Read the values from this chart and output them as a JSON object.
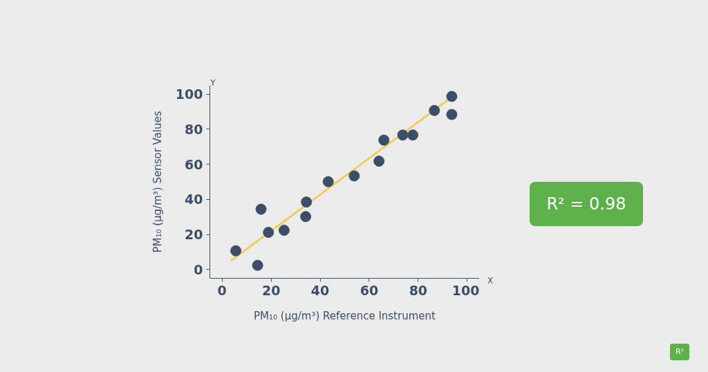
{
  "chart_data": {
    "type": "scatter",
    "xlabel": "PM₁₀ (µg/m³) Reference Instrument",
    "ylabel": "PM₁₀ (µg/m³) Sensor Values",
    "xlim": [
      -5,
      105
    ],
    "ylim": [
      -5,
      105
    ],
    "xticks": [
      0,
      20,
      40,
      60,
      80,
      100
    ],
    "yticks": [
      0,
      20,
      40,
      60,
      80,
      100
    ],
    "grid": false,
    "x": [
      5.6,
      14.5,
      15.9,
      18.9,
      25.3,
      34.4,
      34.1,
      43.3,
      53.9,
      64.0,
      66.0,
      73.7,
      77.8,
      86.6,
      93.7,
      93.7
    ],
    "series": [
      {
        "color": "#3d4f66",
        "marker": "circle",
        "values": [
          10.7,
          2.4,
          34.4,
          21.2,
          22.4,
          38.5,
          30.2,
          50.1,
          53.4,
          61.8,
          73.8,
          76.7,
          76.7,
          90.7,
          98.7,
          88.4
        ]
      },
      {
        "type": "line",
        "color": "#f5c842",
        "x": [
          3.5,
          92.8
        ],
        "values": [
          5.0,
          97.4
        ],
        "line_style": "solid"
      }
    ],
    "annotations": [
      "R² = 0.98",
      "R²",
      "Y",
      "X"
    ]
  }
}
